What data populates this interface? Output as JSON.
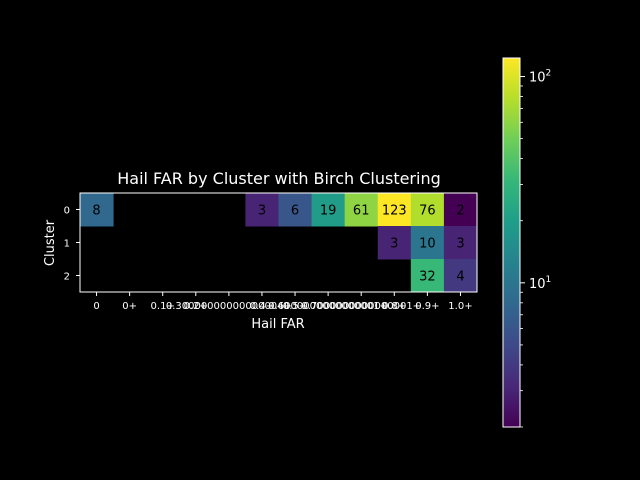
{
  "chart_data": {
    "type": "heatmap",
    "title": "Hail FAR by Cluster with Birch Clustering",
    "xlabel": "Hail FAR",
    "ylabel": "Cluster",
    "x_categories": [
      "0",
      "0+",
      "0.1+",
      "0.2+",
      "0.30000000000000004+",
      "0.4+",
      "0.5+",
      "0.6000000000000001+",
      "0.7000000000000001+",
      "0.8+",
      "0.9+",
      "1.0+"
    ],
    "x_tick_labels": [
      "0",
      "0+",
      "0.1+",
      "0.2+",
      "0.30000000000000004+",
      "0.4+",
      "0.5+",
      "0.6000000000000001+",
      "0.7000000000000001+",
      "0.8+",
      "0.9+",
      "1.0+"
    ],
    "y_categories": [
      "0",
      "1",
      "2"
    ],
    "values": [
      [
        8,
        null,
        null,
        null,
        null,
        3,
        6,
        19,
        61,
        123,
        76,
        2
      ],
      [
        null,
        null,
        null,
        null,
        null,
        null,
        null,
        null,
        null,
        3,
        10,
        3
      ],
      [
        null,
        null,
        null,
        null,
        null,
        null,
        null,
        null,
        null,
        null,
        32,
        4
      ]
    ],
    "colorbar": {
      "scale": "log",
      "colormap": "viridis",
      "range": [
        2,
        123
      ],
      "tick_labels": [
        "10^1",
        "10^2"
      ]
    },
    "background": "#000000",
    "text_color": "#ffffff"
  }
}
